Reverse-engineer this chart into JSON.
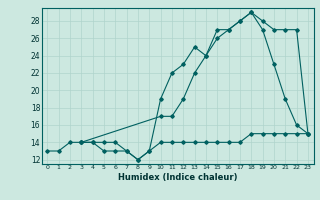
{
  "xlabel": "Humidex (Indice chaleur)",
  "ylabel": "",
  "bg_color": "#cce8e0",
  "line_color": "#006060",
  "xlim": [
    -0.5,
    23.5
  ],
  "ylim": [
    11.5,
    29.5
  ],
  "xticks": [
    0,
    1,
    2,
    3,
    4,
    5,
    6,
    7,
    8,
    9,
    10,
    11,
    12,
    13,
    14,
    15,
    16,
    17,
    18,
    19,
    20,
    21,
    22,
    23
  ],
  "yticks": [
    12,
    14,
    16,
    18,
    20,
    22,
    24,
    26,
    28
  ],
  "series1_x": [
    0,
    1,
    2,
    3,
    4,
    5,
    6,
    7,
    8,
    9,
    10,
    11,
    12,
    13,
    14,
    15,
    16,
    17,
    18,
    19,
    20,
    21,
    22,
    23
  ],
  "series1_y": [
    13,
    13,
    14,
    14,
    14,
    13,
    13,
    13,
    12,
    13,
    14,
    14,
    14,
    14,
    14,
    14,
    14,
    14,
    15,
    15,
    15,
    15,
    15,
    15
  ],
  "series2_x": [
    3,
    4,
    5,
    6,
    7,
    8,
    9,
    10,
    11,
    12,
    13,
    14,
    15,
    16,
    17,
    18,
    19,
    20,
    21,
    22,
    23
  ],
  "series2_y": [
    14,
    14,
    14,
    14,
    13,
    12,
    13,
    19,
    22,
    23,
    25,
    24,
    27,
    27,
    28,
    29,
    27,
    23,
    19,
    16,
    15
  ],
  "series3_x": [
    3,
    10,
    11,
    12,
    13,
    14,
    15,
    16,
    17,
    18,
    19,
    20,
    21,
    22,
    23
  ],
  "series3_y": [
    14,
    17,
    17,
    19,
    22,
    24,
    26,
    27,
    28,
    29,
    28,
    27,
    27,
    27,
    15
  ]
}
